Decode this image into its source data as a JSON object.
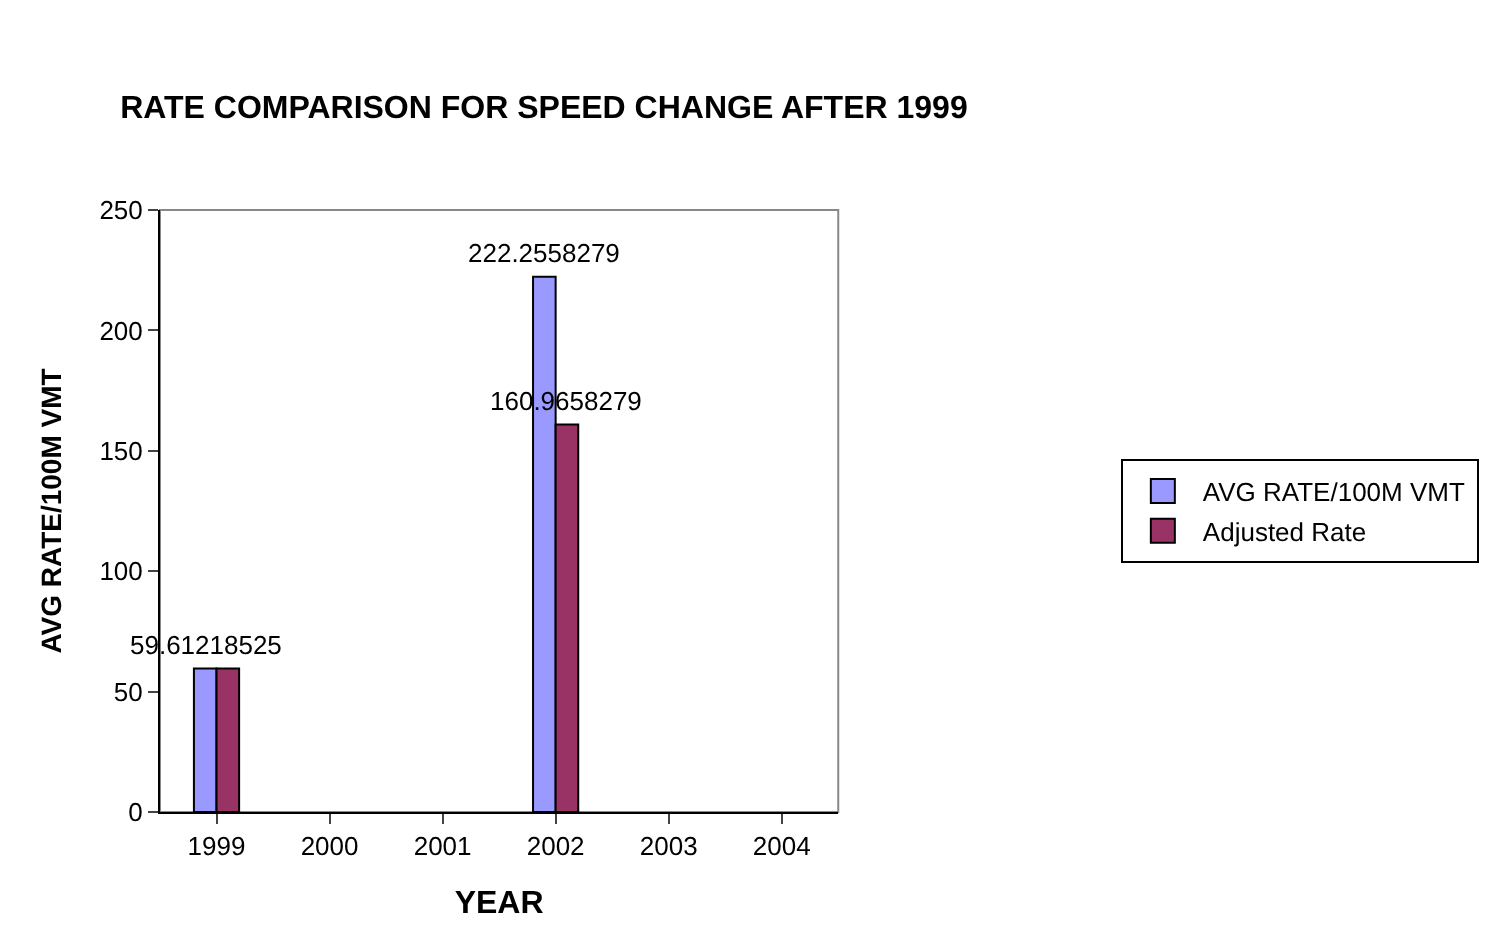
{
  "chart_data": {
    "type": "bar",
    "title": "RATE COMPARISON FOR SPEED CHANGE AFTER 1999",
    "xlabel": "YEAR",
    "ylabel": "AVG RATE/100M VMT",
    "categories": [
      "1999",
      "2000",
      "2001",
      "2002",
      "2003",
      "2004"
    ],
    "series": [
      {
        "name": "AVG RATE/100M VMT",
        "color": "#9999ff",
        "values": [
          59.61218525,
          null,
          null,
          222.2558279,
          null,
          null
        ],
        "value_labels": [
          "59.61218525",
          null,
          null,
          "222.2558279",
          null,
          null
        ]
      },
      {
        "name": "Adjusted Rate",
        "color": "#993366",
        "values": [
          59.6,
          null,
          null,
          160.9658279,
          null,
          null
        ],
        "value_labels": [
          null,
          null,
          null,
          "160.9658279",
          null,
          null
        ]
      }
    ],
    "ylim": [
      0,
      250
    ],
    "yticks": [
      0,
      50,
      100,
      150,
      200,
      250
    ],
    "grid": false,
    "legend": "right"
  }
}
